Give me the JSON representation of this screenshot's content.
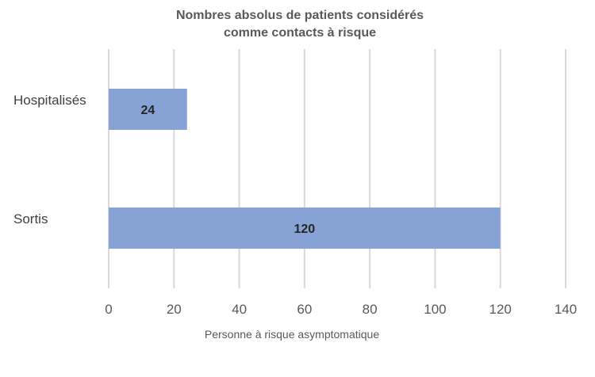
{
  "chart_data": {
    "type": "bar",
    "orientation": "horizontal",
    "title": [
      "Nombres absolus de patients considérés",
      "comme contacts à risque"
    ],
    "xlabel": "Personne à risque asymptomatique",
    "ylabel": "",
    "categories": [
      "Hospitalisés",
      "Sortis"
    ],
    "values": [
      24,
      120
    ],
    "xlim": [
      0,
      140
    ],
    "xticks": [
      0,
      20,
      40,
      60,
      80,
      100,
      120,
      140
    ],
    "grid": true,
    "legend": "none",
    "bar_color": "#87a2d5"
  }
}
